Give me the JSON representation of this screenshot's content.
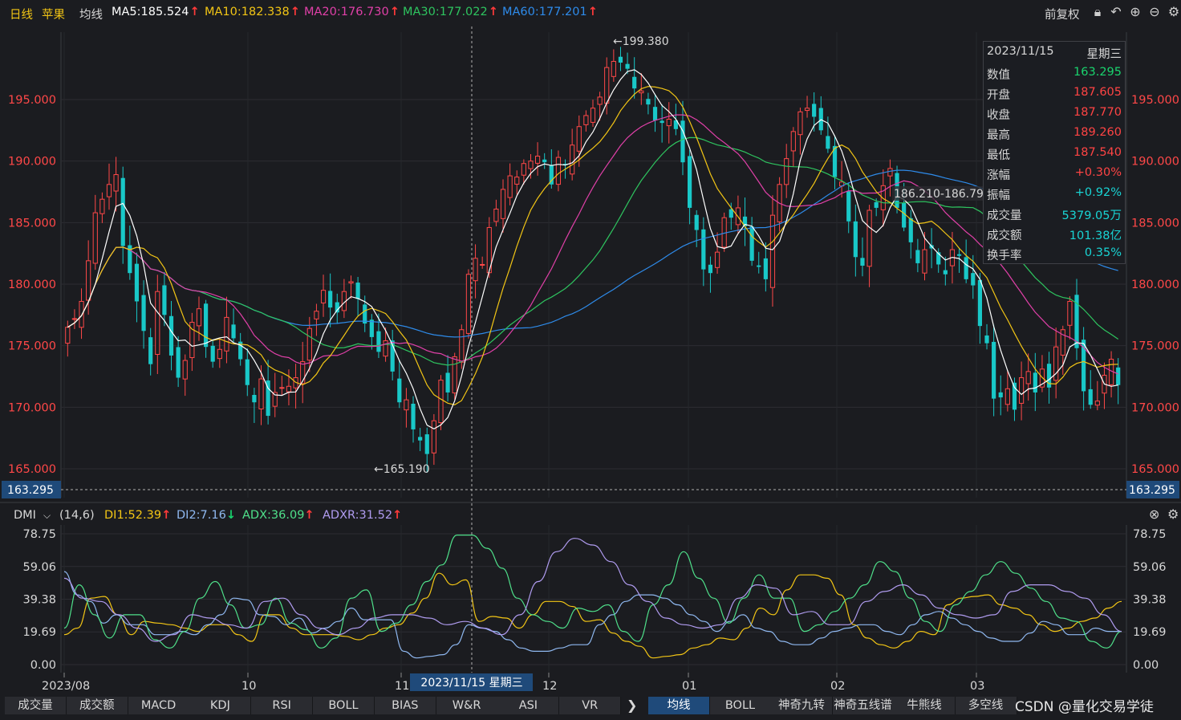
{
  "header": {
    "period": "日线",
    "symbol": "苹果",
    "indicator": "均线",
    "ma": [
      {
        "label": "MA5:185.524",
        "color": "#ffffff"
      },
      {
        "label": "MA10:182.338",
        "color": "#f2c515"
      },
      {
        "label": "MA20:176.730",
        "color": "#e040a8"
      },
      {
        "label": "MA30:177.022",
        "color": "#2ec45f"
      },
      {
        "label": "MA60:177.201",
        "color": "#2e8bea"
      }
    ],
    "adjust": "前复权"
  },
  "tooltip": {
    "date": "2023/11/15",
    "weekday": "星期三",
    "rows": [
      {
        "label": "数值",
        "value": "163.295",
        "color": "#19d46e"
      },
      {
        "label": "开盘",
        "value": "187.605",
        "color": "#ff4444"
      },
      {
        "label": "收盘",
        "value": "187.770",
        "color": "#ff4444"
      },
      {
        "label": "最高",
        "value": "189.260",
        "color": "#ff4444"
      },
      {
        "label": "最低",
        "value": "187.540",
        "color": "#ff4444"
      },
      {
        "label": "涨幅",
        "value": "+0.30%",
        "color": "#ff4444"
      },
      {
        "label": "振幅",
        "value": "+0.92%",
        "color": "#19d4d4"
      },
      {
        "label": "成交量",
        "value": "5379.05万",
        "color": "#19d4d4"
      },
      {
        "label": "成交额",
        "value": "101.38亿",
        "color": "#19d4d4"
      },
      {
        "label": "换手率",
        "value": "0.35%",
        "color": "#19d4d4"
      }
    ]
  },
  "annotations": {
    "max_label": "←199.380",
    "min_label": "←165.190",
    "range_label": "186.210-186.790",
    "crosshair_price": "163.295",
    "crosshair_date": "2023/11/15 星期三"
  },
  "dmi": {
    "name": "DMI",
    "params": "(14,6)",
    "items": [
      {
        "label": "DI1:52.39",
        "color": "#f2c515",
        "dir": "up"
      },
      {
        "label": "DI2:7.16",
        "color": "#8fb8f0",
        "dir": "down"
      },
      {
        "label": "ADX:36.09",
        "color": "#4fe08a",
        "dir": "up"
      },
      {
        "label": "ADXR:31.52",
        "color": "#b09cf0",
        "dir": "up"
      }
    ]
  },
  "bottom_tabs_left": [
    "成交量",
    "成交额",
    "MACD",
    "KDJ",
    "RSI",
    "BOLL",
    "BIAS",
    "W&R",
    "ASI",
    "VR"
  ],
  "bottom_tabs_right": [
    "均线",
    "BOLL",
    "神奇九转",
    "神奇五线谱",
    "牛熊线",
    "多空线"
  ],
  "active_right_tab": "均线",
  "watermark": "CSDN @量化交易学徒",
  "chart_data": [
    {
      "type": "candlestick",
      "title": "苹果 日线",
      "x_tick_labels": [
        "2023/08",
        "10",
        "11",
        "12",
        "01",
        "02",
        "03"
      ],
      "y_tick_labels": [
        "195.000",
        "190.000",
        "185.000",
        "180.000",
        "175.000",
        "170.000",
        "165.000"
      ],
      "ylim": [
        163.295,
        199.38
      ],
      "highest": 199.38,
      "lowest": 165.19,
      "close": [
        176.5,
        177.2,
        178.6,
        181.9,
        185.8,
        186.9,
        188.1,
        188.9,
        183.1,
        180.9,
        178.6,
        176.2,
        173.5,
        179.4,
        177.5,
        174.2,
        172.4,
        173.8,
        176.9,
        178.0,
        174.9,
        173.7,
        174.7,
        177.3,
        175.6,
        173.9,
        171.8,
        170.4,
        172.3,
        169.3,
        171.2,
        171.6,
        171.7,
        172.4,
        173.7,
        176.4,
        177.8,
        179.5,
        178.1,
        177.7,
        179.4,
        180.2,
        178.8,
        176.8,
        175.7,
        174.5,
        175.4,
        172.9,
        170.4,
        170.6,
        168.2,
        167.3,
        166.2,
        168.9,
        172.2,
        171.2,
        174.1,
        176.3,
        180.8,
        182.1,
        181.6,
        184.6,
        186.1,
        187.7,
        188.8,
        188.7,
        189.8,
        190.0,
        190.4,
        189.9,
        188.1,
        190.3,
        189.7,
        191.3,
        192.8,
        193.7,
        194.3,
        195.2,
        197.6,
        198.1,
        198.0,
        197.5,
        195.9,
        195.7,
        194.6,
        193.3,
        193.1,
        193.4,
        192.6,
        189.9,
        186.2,
        184.4,
        181.2,
        180.9,
        182.6,
        185.4,
        185.4,
        186.2,
        184.7,
        181.9,
        181.4,
        180.4,
        185.6,
        188.1,
        190.2,
        192.4,
        194.0,
        194.3,
        193.6,
        192.5,
        191.0,
        188.7,
        188.3,
        185.1,
        182.2,
        181.5,
        186.0,
        186.2,
        188.0,
        189.4,
        186.2,
        184.6,
        183.4,
        181.7,
        182.8,
        182.9,
        181.6,
        180.8,
        182.8,
        182.3,
        180.4,
        179.9,
        176.6,
        175.2,
        170.7,
        170.8,
        171.5,
        169.8,
        172.4,
        172.9,
        171.2,
        173.1,
        171.6,
        174.9,
        176.3,
        178.6,
        174.8,
        171.3,
        170.2,
        170.5,
        172.6,
        173.9,
        171.8
      ],
      "ma_series": [
        "MA5",
        "MA10",
        "MA20",
        "MA30",
        "MA60"
      ]
    },
    {
      "type": "line",
      "title": "DMI (14,6)",
      "y_tick_labels": [
        "78.75",
        "59.06",
        "39.38",
        "19.69",
        "0.00"
      ],
      "ylim": [
        0,
        78.75
      ],
      "series": [
        {
          "name": "DI1",
          "values": [
            18,
            22,
            40,
            41,
            30,
            18,
            26,
            25,
            24,
            22,
            20,
            24,
            24,
            18,
            14,
            30,
            30,
            22,
            18,
            18,
            18,
            17,
            15,
            18,
            22,
            24,
            31,
            40,
            55,
            48,
            51,
            26,
            29,
            28,
            22,
            30,
            38,
            38,
            35,
            26,
            27,
            19,
            14,
            11,
            4,
            5,
            6,
            10,
            12,
            16,
            15,
            22,
            34,
            30,
            45,
            54,
            54,
            52,
            42,
            24,
            16,
            12,
            10,
            14,
            20,
            18,
            36,
            40,
            41,
            42,
            36,
            34,
            30,
            24,
            20,
            22,
            26,
            28,
            34,
            38
          ]
        },
        {
          "name": "DI2",
          "values": [
            56,
            42,
            38,
            25,
            30,
            24,
            24,
            18,
            18,
            20,
            18,
            24,
            30,
            40,
            39,
            30,
            29,
            24,
            28,
            19,
            22,
            26,
            34,
            27,
            27,
            27,
            8,
            4,
            5,
            6,
            12,
            24,
            22,
            20,
            15,
            10,
            8,
            8,
            10,
            12,
            12,
            24,
            30,
            38,
            42,
            42,
            40,
            36,
            30,
            26,
            20,
            26,
            30,
            22,
            20,
            14,
            12,
            12,
            16,
            20,
            22,
            24,
            24,
            20,
            18,
            24,
            30,
            32,
            28,
            24,
            20,
            16,
            14,
            14,
            19,
            26,
            24,
            18,
            18,
            22,
            20,
            20
          ]
        },
        {
          "name": "ADX",
          "values": [
            22,
            48,
            30,
            16,
            30,
            30,
            15,
            10,
            20,
            40,
            50,
            36,
            22,
            24,
            40,
            25,
            21,
            10,
            16,
            40,
            45,
            20,
            25,
            36,
            50,
            60,
            78,
            78,
            70,
            58,
            40,
            30,
            26,
            22,
            34,
            32,
            36,
            20,
            14,
            36,
            48,
            68,
            52,
            40,
            25,
            40,
            54,
            40,
            40,
            20,
            24,
            32,
            40,
            48,
            62,
            56,
            40,
            26,
            20,
            36,
            44,
            54,
            62,
            55,
            46,
            38,
            28,
            26,
            14,
            10,
            20
          ]
        },
        {
          "name": "ADXR",
          "values": [
            52,
            40,
            38,
            30,
            22,
            14,
            18,
            30,
            28,
            24,
            22,
            38,
            40,
            30,
            22,
            18,
            22,
            28,
            30,
            30,
            28,
            24,
            26,
            22,
            18,
            30,
            50,
            68,
            76,
            72,
            62,
            48,
            38,
            28,
            24,
            22,
            24,
            40,
            48,
            46,
            30,
            32,
            24,
            24,
            38,
            44,
            48,
            42,
            34,
            30,
            28,
            30,
            44,
            48,
            48,
            44,
            40,
            30,
            20
          ]
        }
      ]
    }
  ]
}
